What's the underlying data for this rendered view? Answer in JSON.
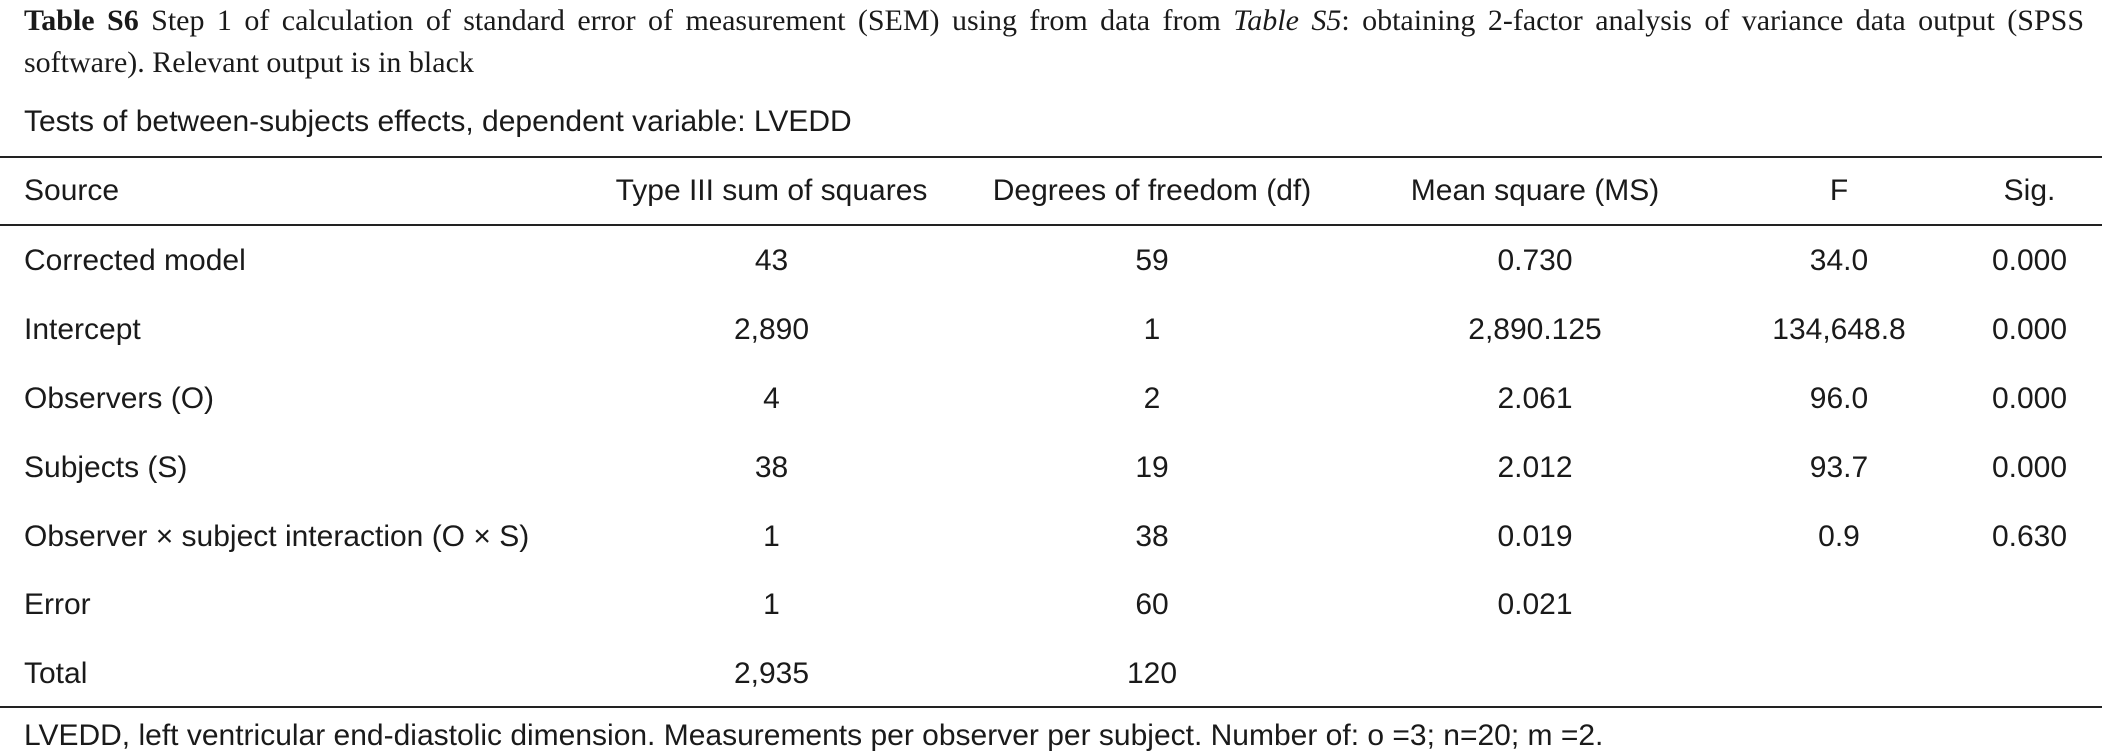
{
  "caption": {
    "label": "Table S6",
    "text_before_ref": " Step 1 of calculation of standard error of measurement (SEM) using from data from ",
    "ref": "Table S5",
    "text_after_ref": ": obtaining 2-factor analysis of variance data output (SPSS software). Relevant output is in black"
  },
  "subtitle": "Tests of between-subjects effects, dependent variable: LVEDD",
  "table": {
    "headers": {
      "source": "Source",
      "ss": "Type III sum of squares",
      "df": "Degrees of freedom (df)",
      "ms": "Mean square (MS)",
      "f": "F",
      "sig": "Sig."
    },
    "rows": [
      {
        "source": "Corrected model",
        "ss": "43",
        "df": "59",
        "ms": "0.730",
        "f": "34.0",
        "sig": "0.000"
      },
      {
        "source": "Intercept",
        "ss": "2,890",
        "df": "1",
        "ms": "2,890.125",
        "f": "134,648.8",
        "sig": "0.000"
      },
      {
        "source": "Observers (O)",
        "ss": "4",
        "df": "2",
        "ms": "2.061",
        "f": "96.0",
        "sig": "0.000"
      },
      {
        "source": "Subjects (S)",
        "ss": "38",
        "df": "19",
        "ms": "2.012",
        "f": "93.7",
        "sig": "0.000"
      },
      {
        "source": "Observer × subject interaction (O × S)",
        "ss": "1",
        "df": "38",
        "ms": "0.019",
        "f": "0.9",
        "sig": "0.630"
      },
      {
        "source": "Error",
        "ss": "1",
        "df": "60",
        "ms": "0.021",
        "f": "",
        "sig": ""
      },
      {
        "source": "Total",
        "ss": "2,935",
        "df": "120",
        "ms": "",
        "f": "",
        "sig": ""
      }
    ]
  },
  "footnote": "LVEDD, left ventricular end-diastolic dimension. Measurements per observer per subject. Number of: o =3; n=20; m =2."
}
